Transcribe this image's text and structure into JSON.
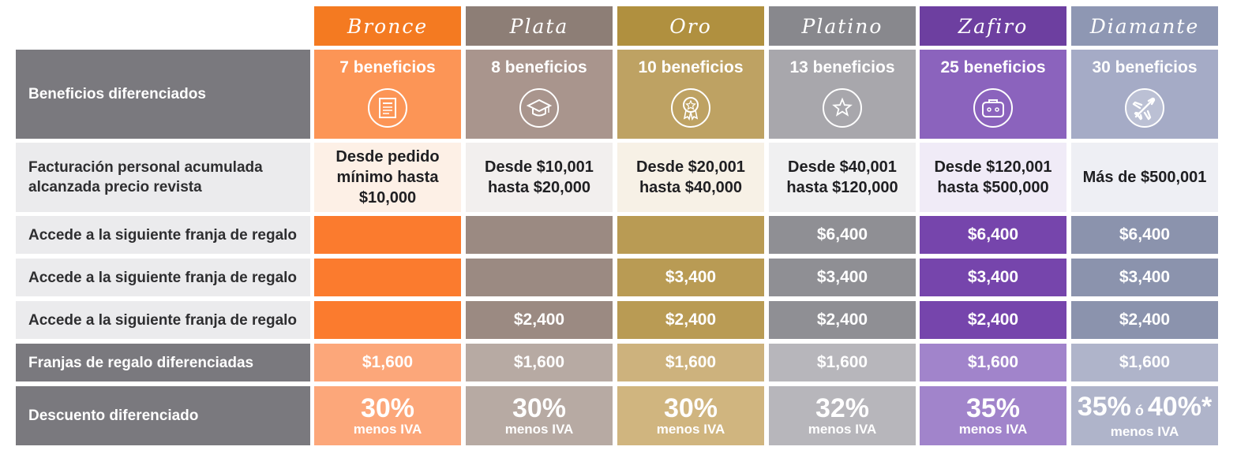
{
  "tiers": [
    {
      "name": "Bronce",
      "benefits": "7 beneficios",
      "icon": "document-icon",
      "facturacion": "Desde pedido mínimo hasta $10,000",
      "gift1": "",
      "gift2": "",
      "gift3": "",
      "franja": "$1,600",
      "discount": "30%",
      "discount_sub": "menos IVA",
      "colors": {
        "head": "#f47a21",
        "benefit": "#fc9556",
        "fact": "#fdf0e6",
        "gift": "#fb7b2e",
        "franja": "#fca77a",
        "disc": "#fca77a"
      }
    },
    {
      "name": "Plata",
      "benefits": "8 beneficios",
      "icon": "graduation-cap-icon",
      "facturacion": "Desde $10,001 hasta $20,000",
      "gift1": "",
      "gift2": "",
      "gift3": "$2,400",
      "franja": "$1,600",
      "discount": "30%",
      "discount_sub": "menos IVA",
      "colors": {
        "head": "#8d7e76",
        "benefit": "#a9958d",
        "fact": "#f2efee",
        "gift": "#9b8a82",
        "franja": "#b7aaa3",
        "disc": "#b7aaa3"
      }
    },
    {
      "name": "Oro",
      "benefits": "10 beneficios",
      "icon": "award-ribbon-icon",
      "facturacion": "Desde $20,001 hasta $40,000",
      "gift1": "",
      "gift2": "$3,400",
      "gift3": "$2,400",
      "franja": "$1,600",
      "discount": "30%",
      "discount_sub": "menos IVA",
      "colors": {
        "head": "#b0903f",
        "benefit": "#bea263",
        "fact": "#f7f1e6",
        "gift": "#b99b54",
        "franja": "#cdb27d",
        "disc": "#d0b57f"
      }
    },
    {
      "name": "Platino",
      "benefits": "13 beneficios",
      "icon": "star-icon",
      "facturacion": "Desde $40,001 hasta $120,000",
      "gift1": "$6,400",
      "gift2": "$3,400",
      "gift3": "$2,400",
      "franja": "$1,600",
      "discount": "32%",
      "discount_sub": "menos IVA",
      "colors": {
        "head": "#88888d",
        "benefit": "#a8a7ac",
        "fact": "#f0f0f1",
        "gift": "#8f8f94",
        "franja": "#b7b6bb",
        "disc": "#b7b6bb"
      }
    },
    {
      "name": "Zafiro",
      "benefits": "25 beneficios",
      "icon": "suitcase-icon",
      "facturacion": "Desde $120,001 hasta $500,000",
      "gift1": "$6,400",
      "gift2": "$3,400",
      "gift3": "$2,400",
      "franja": "$1,600",
      "discount": "35%",
      "discount_sub": "menos IVA",
      "colors": {
        "head": "#6d3fa0",
        "benefit": "#8b63bd",
        "fact": "#f0ebf7",
        "gift": "#7645ac",
        "franja": "#a184cb",
        "disc": "#a184cb"
      }
    },
    {
      "name": "Diamante",
      "benefits": "30 beneficios",
      "icon": "airplane-icon",
      "facturacion": "Más de $500,001",
      "gift1": "$6,400",
      "gift2": "$3,400",
      "gift3": "$2,400",
      "franja": "$1,600",
      "discount": "35%",
      "discount_or": "ó",
      "discount_alt": "40%*",
      "discount_sub": "menos IVA",
      "colors": {
        "head": "#8e97b3",
        "benefit": "#a5abc6",
        "fact": "#eeeff4",
        "gift": "#8b93ad",
        "franja": "#afb4ca",
        "disc": "#afb4ca"
      }
    }
  ],
  "row_labels": {
    "benefits": "Beneficios diferenciados",
    "facturacion": "Facturación personal acumulada alcanzada precio revista",
    "gift1": "Accede a la siguiente franja de regalo",
    "gift2": "Accede a la siguiente franja de regalo",
    "gift3": "Accede a la siguiente franja de regalo",
    "franja": "Franjas de regalo diferenciadas",
    "discount": "Descuento diferenciado"
  }
}
